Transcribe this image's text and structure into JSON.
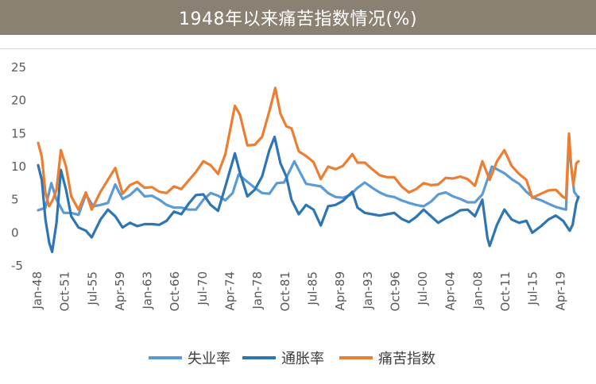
{
  "title": "1948年以来痛苦指数情况(%)",
  "colors": {
    "title_bg": "#8b8173",
    "unemployment": "#5b9bd5",
    "inflation": "#2e75b6",
    "misery": "#ed7d31"
  },
  "chart_data": {
    "type": "line",
    "title": "1948年以来痛苦指数情况(%)",
    "ylim": [
      -5,
      25
    ],
    "y_ticks": [
      "25",
      "20",
      "15",
      "10",
      "5",
      "0",
      "-5"
    ],
    "y_tick_values": [
      25,
      20,
      15,
      10,
      5,
      0,
      -5
    ],
    "x_range": [
      1948.0,
      2021.6
    ],
    "x_ticks": [
      "Jan-48",
      "Oct-51",
      "Jul-55",
      "Apr-59",
      "Jan-63",
      "Oct-66",
      "Jul-70",
      "Apr-74",
      "Jan-78",
      "Oct-81",
      "Jul-85",
      "Apr-89",
      "Jan-93",
      "Oct-96",
      "Jul-00",
      "Apr-04",
      "Jan-08",
      "Oct-11",
      "Jul-15",
      "Apr-19"
    ],
    "x_tick_values": [
      1948.0,
      1951.75,
      1955.5,
      1959.25,
      1963.0,
      1966.75,
      1970.5,
      1974.25,
      1978.0,
      1981.75,
      1985.5,
      1989.25,
      1993.0,
      1996.75,
      2000.5,
      2004.25,
      2008.0,
      2011.75,
      2015.5,
      2019.25
    ],
    "legend_position": "bottom",
    "grid": false,
    "series": [
      {
        "name": "失业率",
        "color": "#5b9bd5",
        "points": [
          [
            1948.0,
            3.4
          ],
          [
            1949.0,
            3.8
          ],
          [
            1949.8,
            7.5
          ],
          [
            1950.5,
            5.0
          ],
          [
            1951.5,
            3.0
          ],
          [
            1952.5,
            3.0
          ],
          [
            1953.5,
            2.7
          ],
          [
            1954.5,
            5.8
          ],
          [
            1955.5,
            4.0
          ],
          [
            1956.5,
            4.2
          ],
          [
            1957.5,
            4.5
          ],
          [
            1958.5,
            7.3
          ],
          [
            1959.5,
            5.1
          ],
          [
            1960.5,
            5.7
          ],
          [
            1961.5,
            6.7
          ],
          [
            1962.5,
            5.5
          ],
          [
            1963.5,
            5.6
          ],
          [
            1964.5,
            5.0
          ],
          [
            1965.5,
            4.2
          ],
          [
            1966.5,
            3.8
          ],
          [
            1967.5,
            3.8
          ],
          [
            1968.5,
            3.5
          ],
          [
            1969.5,
            3.5
          ],
          [
            1970.5,
            5.0
          ],
          [
            1971.5,
            6.0
          ],
          [
            1972.5,
            5.6
          ],
          [
            1973.5,
            4.9
          ],
          [
            1974.5,
            6.0
          ],
          [
            1975.3,
            8.8
          ],
          [
            1976.5,
            7.7
          ],
          [
            1977.5,
            6.8
          ],
          [
            1978.5,
            6.0
          ],
          [
            1979.5,
            5.9
          ],
          [
            1980.5,
            7.5
          ],
          [
            1981.5,
            7.6
          ],
          [
            1982.9,
            10.8
          ],
          [
            1983.5,
            9.5
          ],
          [
            1984.5,
            7.4
          ],
          [
            1985.5,
            7.2
          ],
          [
            1986.5,
            7.0
          ],
          [
            1987.5,
            6.0
          ],
          [
            1988.5,
            5.4
          ],
          [
            1989.5,
            5.3
          ],
          [
            1990.5,
            5.7
          ],
          [
            1991.5,
            6.8
          ],
          [
            1992.5,
            7.6
          ],
          [
            1993.5,
            6.8
          ],
          [
            1994.5,
            6.1
          ],
          [
            1995.5,
            5.6
          ],
          [
            1996.5,
            5.4
          ],
          [
            1997.5,
            4.9
          ],
          [
            1998.5,
            4.5
          ],
          [
            1999.5,
            4.2
          ],
          [
            2000.5,
            4.0
          ],
          [
            2001.5,
            4.7
          ],
          [
            2002.5,
            5.8
          ],
          [
            2003.5,
            6.1
          ],
          [
            2004.5,
            5.5
          ],
          [
            2005.5,
            5.1
          ],
          [
            2006.5,
            4.6
          ],
          [
            2007.5,
            4.6
          ],
          [
            2008.5,
            5.8
          ],
          [
            2009.8,
            10.0
          ],
          [
            2010.5,
            9.6
          ],
          [
            2011.5,
            9.0
          ],
          [
            2012.5,
            8.1
          ],
          [
            2013.5,
            7.4
          ],
          [
            2014.5,
            6.2
          ],
          [
            2015.5,
            5.3
          ],
          [
            2016.5,
            4.9
          ],
          [
            2017.5,
            4.4
          ],
          [
            2018.5,
            3.9
          ],
          [
            2019.5,
            3.6
          ],
          [
            2019.9,
            3.5
          ],
          [
            2020.3,
            14.7
          ],
          [
            2020.5,
            11.1
          ],
          [
            2021.0,
            6.2
          ],
          [
            2021.5,
            5.4
          ]
        ]
      },
      {
        "name": "通胀率",
        "color": "#2e75b6",
        "points": [
          [
            1948.0,
            10.2
          ],
          [
            1948.5,
            8.0
          ],
          [
            1949.0,
            2.0
          ],
          [
            1949.5,
            -1.5
          ],
          [
            1949.9,
            -2.9
          ],
          [
            1950.5,
            1.5
          ],
          [
            1951.1,
            9.5
          ],
          [
            1951.8,
            6.5
          ],
          [
            1952.5,
            2.5
          ],
          [
            1953.5,
            0.8
          ],
          [
            1954.5,
            0.3
          ],
          [
            1955.3,
            -0.7
          ],
          [
            1956.5,
            2.0
          ],
          [
            1957.5,
            3.5
          ],
          [
            1958.5,
            2.5
          ],
          [
            1959.5,
            0.8
          ],
          [
            1960.5,
            1.5
          ],
          [
            1961.5,
            1.0
          ],
          [
            1962.5,
            1.3
          ],
          [
            1963.5,
            1.3
          ],
          [
            1964.5,
            1.2
          ],
          [
            1965.5,
            1.8
          ],
          [
            1966.5,
            3.2
          ],
          [
            1967.5,
            2.8
          ],
          [
            1968.5,
            4.4
          ],
          [
            1969.5,
            5.7
          ],
          [
            1970.5,
            5.8
          ],
          [
            1971.5,
            4.2
          ],
          [
            1972.5,
            3.3
          ],
          [
            1973.5,
            7.0
          ],
          [
            1974.8,
            12.0
          ],
          [
            1975.5,
            9.0
          ],
          [
            1976.5,
            5.5
          ],
          [
            1977.5,
            6.5
          ],
          [
            1978.5,
            8.5
          ],
          [
            1979.5,
            12.5
          ],
          [
            1980.2,
            14.5
          ],
          [
            1981.0,
            10.5
          ],
          [
            1981.8,
            8.5
          ],
          [
            1982.5,
            5.0
          ],
          [
            1983.5,
            2.8
          ],
          [
            1984.5,
            4.2
          ],
          [
            1985.5,
            3.5
          ],
          [
            1986.5,
            1.1
          ],
          [
            1987.5,
            4.0
          ],
          [
            1988.5,
            4.2
          ],
          [
            1989.5,
            4.8
          ],
          [
            1990.8,
            6.2
          ],
          [
            1991.5,
            3.8
          ],
          [
            1992.5,
            3.0
          ],
          [
            1993.5,
            2.8
          ],
          [
            1994.5,
            2.6
          ],
          [
            1995.5,
            2.8
          ],
          [
            1996.5,
            3.0
          ],
          [
            1997.5,
            2.1
          ],
          [
            1998.5,
            1.6
          ],
          [
            1999.5,
            2.4
          ],
          [
            2000.5,
            3.5
          ],
          [
            2001.5,
            2.5
          ],
          [
            2002.5,
            1.5
          ],
          [
            2003.5,
            2.2
          ],
          [
            2004.5,
            2.7
          ],
          [
            2005.5,
            3.4
          ],
          [
            2006.5,
            3.5
          ],
          [
            2007.5,
            2.5
          ],
          [
            2008.5,
            5.0
          ],
          [
            2009.2,
            -0.8
          ],
          [
            2009.5,
            -2.0
          ],
          [
            2010.5,
            1.2
          ],
          [
            2011.5,
            3.5
          ],
          [
            2012.5,
            2.0
          ],
          [
            2013.5,
            1.5
          ],
          [
            2014.5,
            1.8
          ],
          [
            2015.3,
            0.0
          ],
          [
            2016.5,
            1.0
          ],
          [
            2017.5,
            2.0
          ],
          [
            2018.5,
            2.6
          ],
          [
            2019.5,
            1.8
          ],
          [
            2020.4,
            0.3
          ],
          [
            2020.8,
            1.2
          ],
          [
            2021.3,
            4.5
          ],
          [
            2021.6,
            5.4
          ]
        ]
      },
      {
        "name": "痛苦指数",
        "color": "#ed7d31",
        "points": [
          [
            1948.0,
            13.6
          ],
          [
            1948.5,
            11.5
          ],
          [
            1949.0,
            6.0
          ],
          [
            1949.5,
            4.0
          ],
          [
            1950.0,
            5.0
          ],
          [
            1950.5,
            6.5
          ],
          [
            1951.1,
            12.5
          ],
          [
            1951.8,
            10.0
          ],
          [
            1952.5,
            5.5
          ],
          [
            1953.5,
            3.5
          ],
          [
            1954.5,
            6.1
          ],
          [
            1955.3,
            3.5
          ],
          [
            1956.5,
            6.2
          ],
          [
            1957.5,
            8.0
          ],
          [
            1958.5,
            9.8
          ],
          [
            1959.5,
            5.9
          ],
          [
            1960.5,
            7.2
          ],
          [
            1961.5,
            7.7
          ],
          [
            1962.5,
            6.8
          ],
          [
            1963.5,
            6.9
          ],
          [
            1964.5,
            6.2
          ],
          [
            1965.5,
            6.0
          ],
          [
            1966.5,
            7.0
          ],
          [
            1967.5,
            6.6
          ],
          [
            1968.5,
            7.9
          ],
          [
            1969.5,
            9.2
          ],
          [
            1970.5,
            10.8
          ],
          [
            1971.5,
            10.2
          ],
          [
            1972.5,
            8.9
          ],
          [
            1973.5,
            11.9
          ],
          [
            1974.8,
            19.2
          ],
          [
            1975.5,
            17.8
          ],
          [
            1976.5,
            13.2
          ],
          [
            1977.5,
            13.3
          ],
          [
            1978.5,
            14.5
          ],
          [
            1979.5,
            18.4
          ],
          [
            1980.3,
            21.9
          ],
          [
            1981.0,
            18.0
          ],
          [
            1981.8,
            16.1
          ],
          [
            1982.5,
            15.8
          ],
          [
            1983.5,
            12.3
          ],
          [
            1984.5,
            11.6
          ],
          [
            1985.5,
            10.7
          ],
          [
            1986.5,
            8.1
          ],
          [
            1987.5,
            10.0
          ],
          [
            1988.5,
            9.6
          ],
          [
            1989.5,
            10.1
          ],
          [
            1990.8,
            11.9
          ],
          [
            1991.5,
            10.6
          ],
          [
            1992.5,
            10.6
          ],
          [
            1993.5,
            9.6
          ],
          [
            1994.5,
            8.7
          ],
          [
            1995.5,
            8.4
          ],
          [
            1996.5,
            8.4
          ],
          [
            1997.5,
            7.0
          ],
          [
            1998.5,
            6.1
          ],
          [
            1999.5,
            6.6
          ],
          [
            2000.5,
            7.5
          ],
          [
            2001.5,
            7.2
          ],
          [
            2002.5,
            7.3
          ],
          [
            2003.5,
            8.3
          ],
          [
            2004.5,
            8.2
          ],
          [
            2005.5,
            8.5
          ],
          [
            2006.5,
            8.1
          ],
          [
            2007.5,
            7.1
          ],
          [
            2008.5,
            10.8
          ],
          [
            2009.5,
            8.0
          ],
          [
            2010.5,
            10.8
          ],
          [
            2011.5,
            12.5
          ],
          [
            2012.5,
            10.1
          ],
          [
            2013.5,
            8.9
          ],
          [
            2014.5,
            8.0
          ],
          [
            2015.3,
            5.3
          ],
          [
            2016.5,
            5.9
          ],
          [
            2017.5,
            6.4
          ],
          [
            2018.5,
            6.5
          ],
          [
            2019.5,
            5.4
          ],
          [
            2019.9,
            5.2
          ],
          [
            2020.3,
            15.0
          ],
          [
            2020.6,
            10.0
          ],
          [
            2020.9,
            7.2
          ],
          [
            2021.3,
            10.5
          ],
          [
            2021.6,
            10.8
          ]
        ]
      }
    ]
  }
}
